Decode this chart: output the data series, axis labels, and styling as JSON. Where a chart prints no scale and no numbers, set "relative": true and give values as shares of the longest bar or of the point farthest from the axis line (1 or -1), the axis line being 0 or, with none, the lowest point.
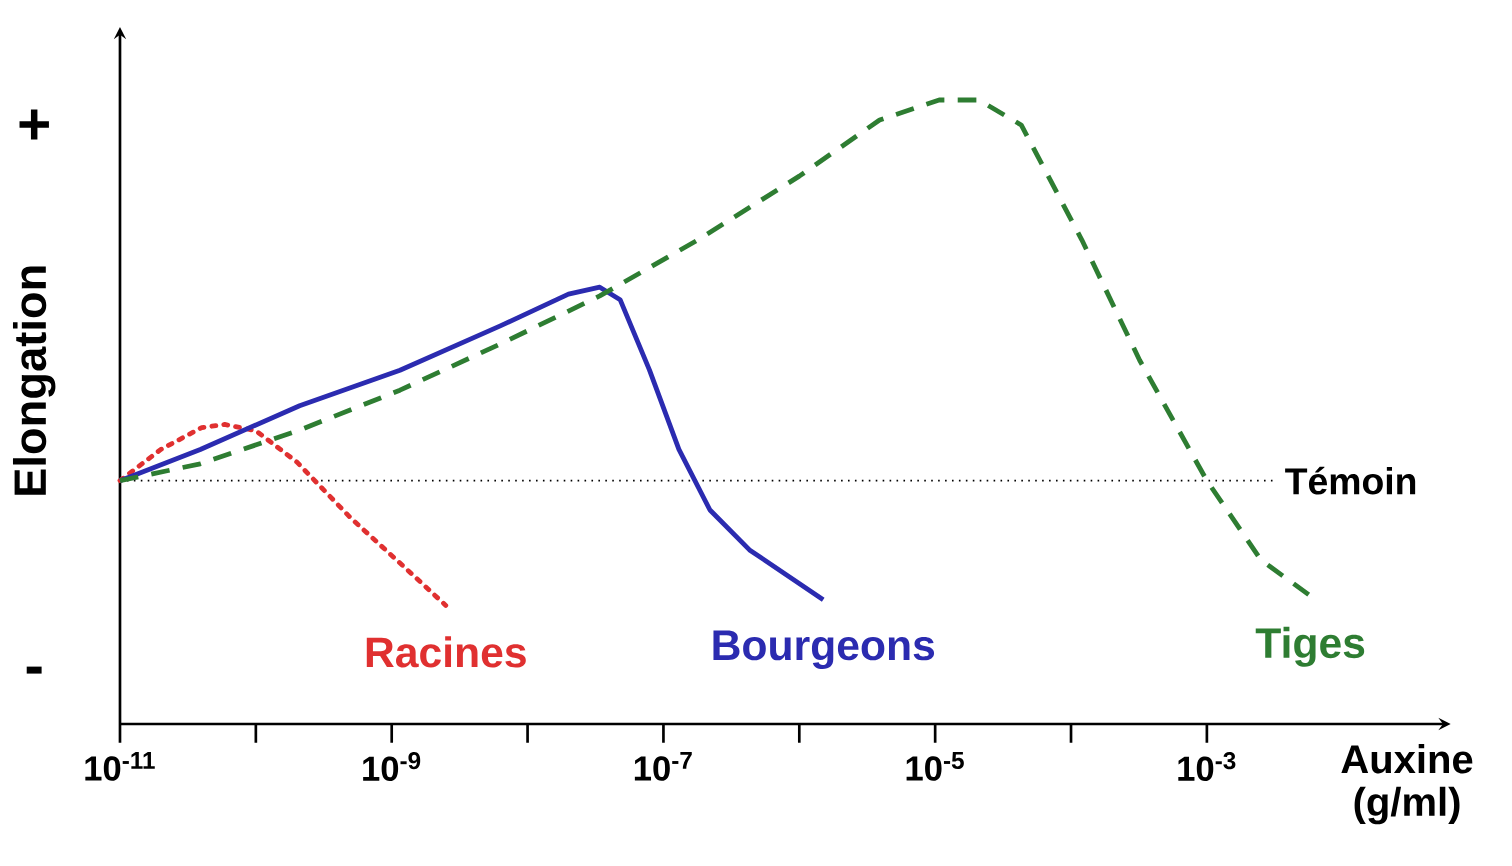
{
  "chart_data": {
    "type": "line",
    "relative": true,
    "log": "x",
    "xlabel": "Auxine (g/ml)",
    "ylabel": "Elongation",
    "annotations": [
      "+",
      "-"
    ],
    "xlim": [
      1e-11,
      0.052
    ],
    "xticks": [
      {
        "value": 1e-11,
        "label": "10$^{-11}$"
      },
      {
        "value": 1e-10,
        "label": null
      },
      {
        "value": 1e-09,
        "label": "10$^{-9}$"
      },
      {
        "value": 1e-08,
        "label": null
      },
      {
        "value": 1e-07,
        "label": "10$^{-7}$"
      },
      {
        "value": 1e-06,
        "label": null
      },
      {
        "value": 1e-05,
        "label": "10$^{-5}$"
      },
      {
        "value": 0.0001,
        "label": null
      },
      {
        "value": 0.001,
        "label": "10$^{-3}$"
      }
    ],
    "ref_lines": [
      {
        "axis": "y",
        "value": 0.39,
        "label": "Témoin",
        "color": "#000000",
        "line_style": "dotted"
      }
    ],
    "series": [
      {
        "name": "Racines",
        "color": "#e03030",
        "line_style": "dotted",
        "x": [
          1e-11,
          2e-11,
          4e-11,
          5.9e-11,
          1e-10,
          2e-10,
          5e-10,
          1.26e-09,
          2.5e-09
        ],
        "values": [
          0.39,
          0.44,
          0.475,
          0.48,
          0.47,
          0.42,
          0.33,
          0.25,
          0.19
        ]
      },
      {
        "name": "Bourgeons",
        "color": "#2b2bb0",
        "line_style": "solid",
        "x": [
          1e-11,
          3.9e-11,
          2.1e-10,
          1.15e-09,
          6.3e-09,
          2e-08,
          3.4e-08,
          4.8e-08,
          7.9e-08,
          1.3e-07,
          2.2e-07,
          4.3e-07,
          1.5e-06
        ],
        "values": [
          0.39,
          0.44,
          0.51,
          0.567,
          0.638,
          0.689,
          0.7,
          0.68,
          0.567,
          0.44,
          0.343,
          0.279,
          0.199
        ]
      },
      {
        "name": "Tiges",
        "color": "#2e7d32",
        "line_style": "dashed",
        "x": [
          1e-11,
          3.9e-11,
          2.1e-10,
          1.15e-09,
          6.3e-09,
          3.4e-08,
          1.8e-07,
          1e-06,
          3.9e-06,
          1.07e-05,
          2.1e-05,
          4.3e-05,
          0.00012,
          0.00032,
          0.001,
          0.0025,
          0.0058
        ],
        "values": [
          0.39,
          0.417,
          0.471,
          0.535,
          0.609,
          0.686,
          0.776,
          0.878,
          0.968,
          1.0,
          1.0,
          0.96,
          0.776,
          0.583,
          0.39,
          0.263,
          0.205
        ]
      }
    ]
  }
}
